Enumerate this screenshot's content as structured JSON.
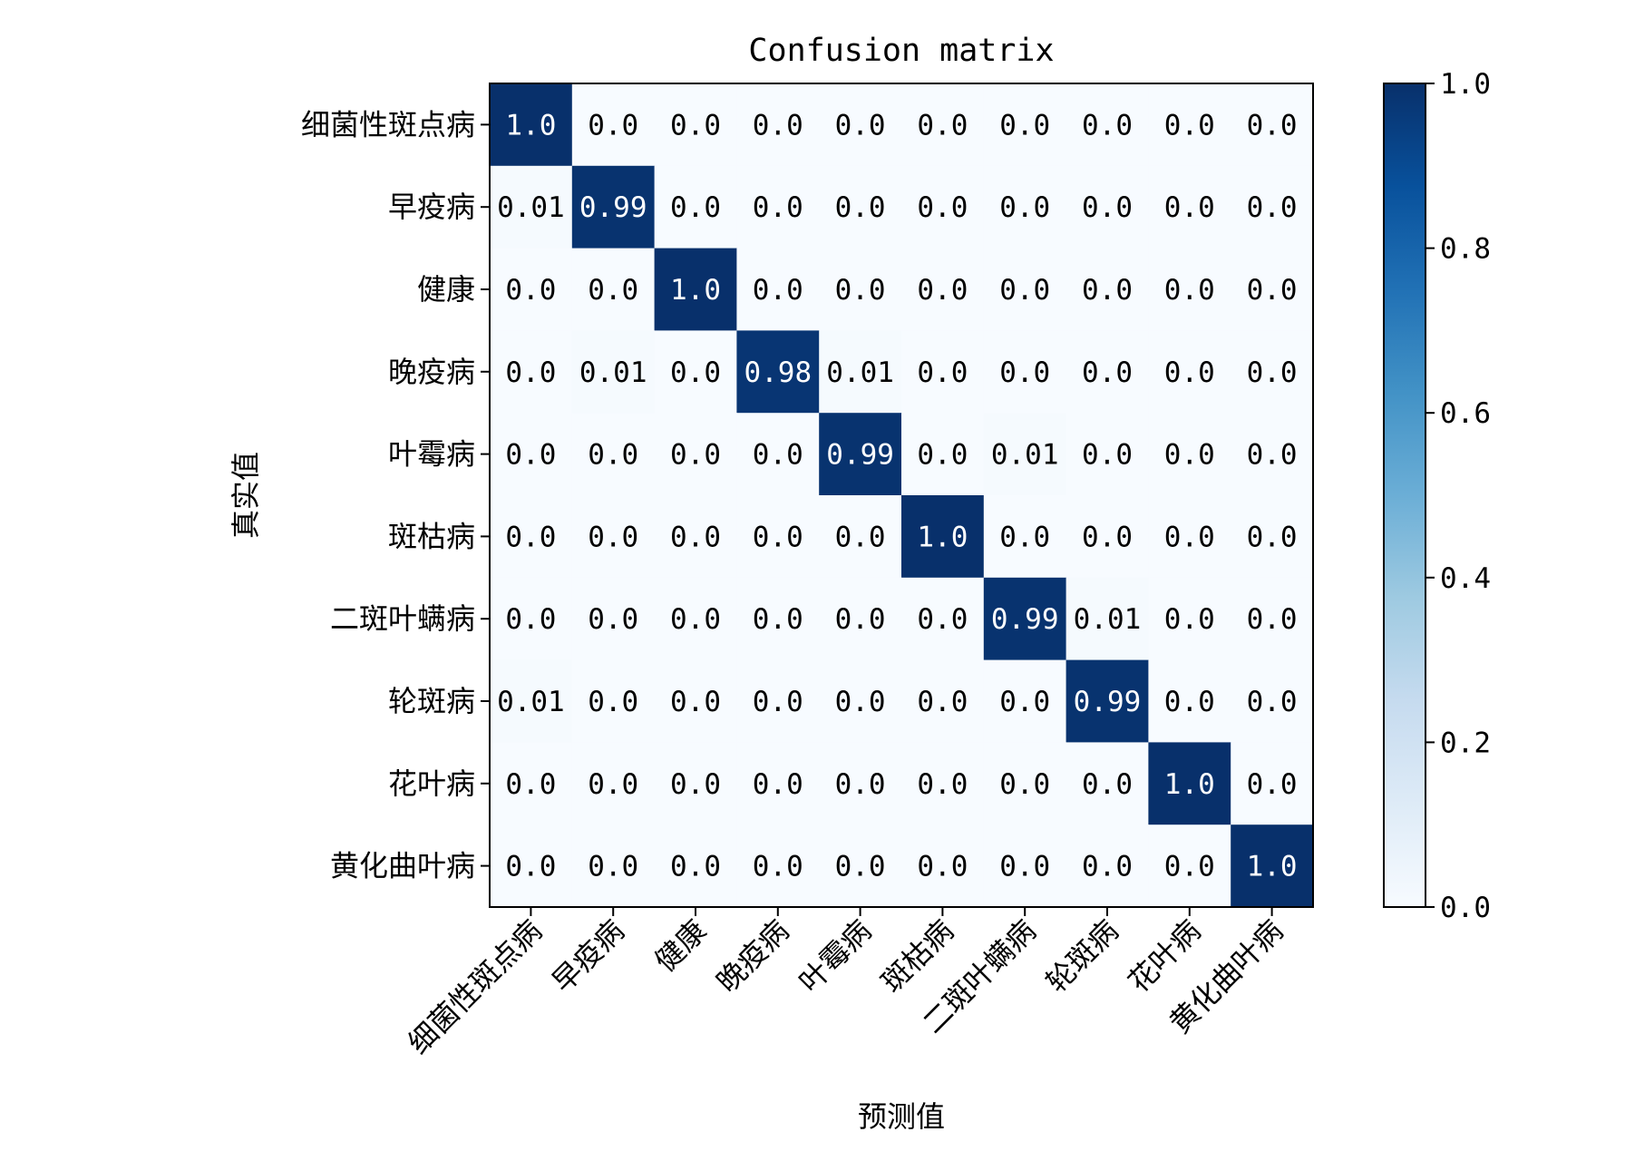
{
  "chart_data": {
    "type": "heatmap",
    "title": "Confusion matrix",
    "xlabel": "预测值",
    "ylabel": "真实值",
    "categories": [
      "细菌性斑点病",
      "早疫病",
      "健康",
      "晚疫病",
      "叶霉病",
      "斑枯病",
      "二斑叶螨病",
      "轮斑病",
      "花叶病",
      "黄化曲叶病"
    ],
    "matrix": [
      [
        1.0,
        0.0,
        0.0,
        0.0,
        0.0,
        0.0,
        0.0,
        0.0,
        0.0,
        0.0
      ],
      [
        0.01,
        0.99,
        0.0,
        0.0,
        0.0,
        0.0,
        0.0,
        0.0,
        0.0,
        0.0
      ],
      [
        0.0,
        0.0,
        1.0,
        0.0,
        0.0,
        0.0,
        0.0,
        0.0,
        0.0,
        0.0
      ],
      [
        0.0,
        0.01,
        0.0,
        0.98,
        0.01,
        0.0,
        0.0,
        0.0,
        0.0,
        0.0
      ],
      [
        0.0,
        0.0,
        0.0,
        0.0,
        0.99,
        0.0,
        0.01,
        0.0,
        0.0,
        0.0
      ],
      [
        0.0,
        0.0,
        0.0,
        0.0,
        0.0,
        1.0,
        0.0,
        0.0,
        0.0,
        0.0
      ],
      [
        0.0,
        0.0,
        0.0,
        0.0,
        0.0,
        0.0,
        0.99,
        0.01,
        0.0,
        0.0
      ],
      [
        0.01,
        0.0,
        0.0,
        0.0,
        0.0,
        0.0,
        0.0,
        0.99,
        0.0,
        0.0
      ],
      [
        0.0,
        0.0,
        0.0,
        0.0,
        0.0,
        0.0,
        0.0,
        0.0,
        1.0,
        0.0
      ],
      [
        0.0,
        0.0,
        0.0,
        0.0,
        0.0,
        0.0,
        0.0,
        0.0,
        0.0,
        1.0
      ]
    ],
    "cell_labels": [
      [
        "1.0",
        "0.0",
        "0.0",
        "0.0",
        "0.0",
        "0.0",
        "0.0",
        "0.0",
        "0.0",
        "0.0"
      ],
      [
        "0.01",
        "0.99",
        "0.0",
        "0.0",
        "0.0",
        "0.0",
        "0.0",
        "0.0",
        "0.0",
        "0.0"
      ],
      [
        "0.0",
        "0.0",
        "1.0",
        "0.0",
        "0.0",
        "0.0",
        "0.0",
        "0.0",
        "0.0",
        "0.0"
      ],
      [
        "0.0",
        "0.01",
        "0.0",
        "0.98",
        "0.01",
        "0.0",
        "0.0",
        "0.0",
        "0.0",
        "0.0"
      ],
      [
        "0.0",
        "0.0",
        "0.0",
        "0.0",
        "0.99",
        "0.0",
        "0.01",
        "0.0",
        "0.0",
        "0.0"
      ],
      [
        "0.0",
        "0.0",
        "0.0",
        "0.0",
        "0.0",
        "1.0",
        "0.0",
        "0.0",
        "0.0",
        "0.0"
      ],
      [
        "0.0",
        "0.0",
        "0.0",
        "0.0",
        "0.0",
        "0.0",
        "0.99",
        "0.01",
        "0.0",
        "0.0"
      ],
      [
        "0.01",
        "0.0",
        "0.0",
        "0.0",
        "0.0",
        "0.0",
        "0.0",
        "0.99",
        "0.0",
        "0.0"
      ],
      [
        "0.0",
        "0.0",
        "0.0",
        "0.0",
        "0.0",
        "0.0",
        "0.0",
        "0.0",
        "1.0",
        "0.0"
      ],
      [
        "0.0",
        "0.0",
        "0.0",
        "0.0",
        "0.0",
        "0.0",
        "0.0",
        "0.0",
        "0.0",
        "1.0"
      ]
    ],
    "colorbar": {
      "range": [
        0.0,
        1.0
      ],
      "ticks": [
        0.0,
        0.2,
        0.4,
        0.6,
        0.8,
        1.0
      ],
      "tick_labels": [
        "0.0",
        "0.2",
        "0.4",
        "0.6",
        "0.8",
        "1.0"
      ]
    },
    "colormap": [
      "#f7fbff",
      "#deebf7",
      "#c6dbef",
      "#9ecae1",
      "#6baed6",
      "#4292c6",
      "#2171b5",
      "#08519c",
      "#08306b"
    ],
    "text_color_light": "#ffffff",
    "text_color_dark": "#000000",
    "grid": false,
    "legend": "none"
  }
}
